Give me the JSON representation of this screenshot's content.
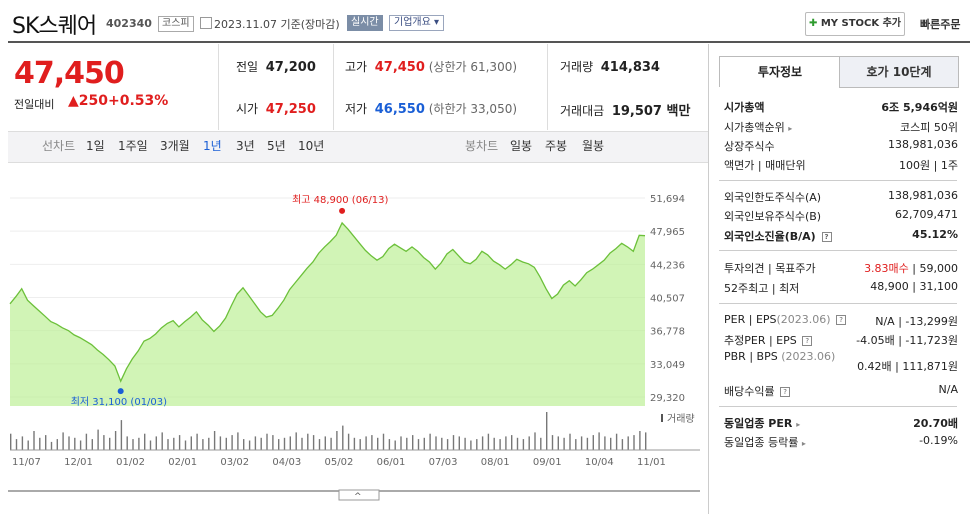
{
  "header": {
    "company": "SK스퀘어",
    "code": "402340",
    "market": "코스피",
    "date": "2023.11.07 기준(장마감)",
    "realtime": "실시간",
    "overview": "기업개요",
    "mystock": "MY STOCK 추가",
    "quick_order": "빠른주문"
  },
  "price": {
    "current": "47,450",
    "change_label": "전일대비",
    "change": "250",
    "change_rate": "+0.53%"
  },
  "stats": {
    "prev_label": "전일",
    "prev": "47,200",
    "high_label": "고가",
    "high": "47,450",
    "upper_limit": "(상한가 61,300)",
    "volume_label": "거래량",
    "volume": "414,834",
    "open_label": "시가",
    "open": "47,250",
    "low_label": "저가",
    "low": "46,550",
    "lower_limit": "(하한가 33,050)",
    "amount_label": "거래대금",
    "amount": "19,507 백만"
  },
  "period": {
    "line_label": "선차트",
    "items": [
      "1일",
      "1주일",
      "3개월",
      "1년",
      "3년",
      "5년",
      "10년"
    ],
    "active": "1년",
    "candle_label": "봉차트",
    "candle_items": [
      "일봉",
      "주봉",
      "월봉"
    ]
  },
  "chart_data": {
    "type": "area",
    "y_ticks": [
      "51,694",
      "47,965",
      "44,236",
      "40,507",
      "36,778",
      "33,049",
      "29,320"
    ],
    "x_ticks": [
      "11/07",
      "12/01",
      "01/02",
      "02/01",
      "03/02",
      "04/03",
      "05/02",
      "06/01",
      "07/03",
      "08/01",
      "09/01",
      "10/04",
      "11/01"
    ],
    "ylim": [
      29320,
      51694
    ],
    "high_label": "최고 48,900 (06/13)",
    "low_label": "최저 31,100 (01/03)",
    "volume_label": "거래량",
    "series": [
      {
        "values": [
          39800,
          40600,
          41500,
          40200,
          39600,
          39000,
          38400,
          37800,
          37500,
          37100,
          36800,
          36300,
          36000,
          35600,
          35200,
          34600,
          34100,
          33500,
          32800,
          31100,
          32500,
          33600,
          34500,
          35600,
          35900,
          36400,
          37100,
          37600,
          37900,
          37200,
          37800,
          38300,
          38900,
          38000,
          37400,
          36700,
          37300,
          38200,
          39600,
          40900,
          41600,
          40700,
          39800,
          38900,
          38300,
          38500,
          39300,
          40200,
          41400,
          42200,
          43000,
          43800,
          44500,
          45500,
          46200,
          46800,
          47500,
          48900,
          48200,
          47400,
          46600,
          45800,
          45200,
          44700,
          45100,
          46000,
          46500,
          46100,
          45700,
          46200,
          45700,
          45000,
          44500,
          43700,
          44400,
          45400,
          45900,
          45200,
          44500,
          44300,
          44800,
          45700,
          45300,
          44600,
          44200,
          43700,
          44200,
          44800,
          44500,
          44300,
          43900,
          42800,
          41500,
          40400,
          40900,
          41900,
          42400,
          41800,
          42500,
          43300,
          43700,
          44200,
          44700,
          45500,
          46000,
          46600,
          46200,
          45700,
          47500,
          47450
        ]
      }
    ]
  },
  "volume_data": [
    12,
    8,
    10,
    7,
    14,
    9,
    11,
    6,
    8,
    13,
    10,
    9,
    7,
    12,
    8,
    15,
    11,
    9,
    14,
    22,
    10,
    8,
    9,
    12,
    7,
    10,
    13,
    8,
    9,
    11,
    7,
    10,
    12,
    8,
    9,
    14,
    10,
    9,
    11,
    13,
    8,
    7,
    10,
    9,
    12,
    11,
    8,
    9,
    10,
    13,
    9,
    12,
    11,
    8,
    10,
    9,
    14,
    18,
    12,
    9,
    8,
    10,
    11,
    9,
    12,
    8,
    7,
    10,
    9,
    11,
    8,
    9,
    12,
    10,
    9,
    8,
    11,
    10,
    9,
    7,
    8,
    10,
    12,
    9,
    8,
    10,
    11,
    9,
    8,
    10,
    13,
    9,
    28,
    11,
    10,
    9,
    12,
    8,
    10,
    9,
    11,
    13,
    10,
    9,
    12,
    8,
    10,
    11,
    14,
    13
  ],
  "tabs": {
    "invest": "투자정보",
    "orderbook": "호가 10단계"
  },
  "info": {
    "mktcap_label": "시가총액",
    "mktcap": "6조 5,946억원",
    "rank_label": "시가총액순위",
    "rank": "코스피 50위",
    "shares_label": "상장주식수",
    "shares": "138,981,036",
    "par_label": "액면가",
    "unit_label": "매매단위",
    "par": "100원",
    "unit": "1주",
    "foreign_limit_label": "외국인한도주식수(A)",
    "foreign_limit": "138,981,036",
    "foreign_hold_label": "외국인보유주식수(B)",
    "foreign_hold": "62,709,471",
    "foreign_ratio_label": "외국인소진율(B/A)",
    "foreign_ratio": "45.12%",
    "opinion_label": "투자의견",
    "target_label": "목표주가",
    "opinion": "3.83매수",
    "target": "59,000",
    "w52_label": "52주최고",
    "w52_low_label": "최저",
    "w52_high": "48,900",
    "w52_low": "31,100",
    "per_label": "PER",
    "eps_label": "EPS",
    "per_year": "(2023.06)",
    "per": "N/A",
    "eps": "-13,299원",
    "est_per_label": "추정PER",
    "est_eps_label": "EPS",
    "est_per": "-4.05배",
    "est_eps": "-11,723원",
    "pbr_label": "PBR",
    "bps_label": "BPS",
    "pbr_year": "(2023.06)",
    "pbr": "0.42배",
    "bps": "111,871원",
    "div_label": "배당수익률",
    "div": "N/A",
    "ind_per_label": "동일업종 PER",
    "ind_per": "20.70배",
    "ind_rate_label": "동일업종 등락률",
    "ind_rate": "-0.19%"
  },
  "colors": {
    "up": "#e01e1e",
    "down": "#1a5fd6",
    "area_fill": "#b8ee8f",
    "line": "#6cc03a"
  }
}
